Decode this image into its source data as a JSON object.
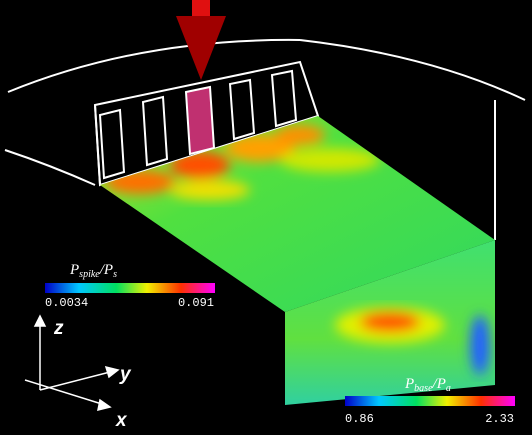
{
  "colorbars": [
    {
      "label": {
        "numerator": {
          "symbol": "P",
          "subscript": "spike"
        },
        "separator": "/",
        "denominator": {
          "symbol": "P",
          "subscript": "s"
        }
      },
      "min": 0.0034,
      "max": 0.091
    },
    {
      "label": {
        "numerator": {
          "symbol": "P",
          "subscript": "base"
        },
        "separator": "/",
        "denominator": {
          "symbol": "P",
          "subscript": "a"
        }
      },
      "min": 0.86,
      "max": 2.33
    }
  ],
  "axes": {
    "z": "z",
    "y": "y",
    "x": "x"
  }
}
